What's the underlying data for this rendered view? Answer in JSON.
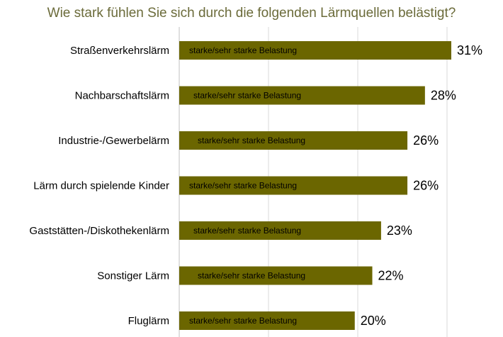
{
  "chart_data": {
    "type": "bar",
    "orientation": "horizontal",
    "title": "Wie stark fühlen Sie sich durch die folgenden Lärmquellen belästigt?",
    "categories": [
      "Straßenverkehrslärm",
      "Nachbarschaftslärm",
      "Industrie-/Gewerbelärm",
      "Lärm durch spielende Kinder",
      "Gaststätten-/Diskothekenlärm",
      "Sonstiger Lärm",
      "Fluglärm"
    ],
    "series": [
      {
        "name": "starke/sehr starke Belastung",
        "values": [
          31,
          28,
          26,
          26,
          23,
          22,
          20
        ],
        "value_labels": [
          "31%",
          "28%",
          "26%",
          "26%",
          "23%",
          "22%",
          "20%"
        ]
      }
    ],
    "bar_text": "starke/sehr starke Belastung",
    "xlim": [
      0,
      31
    ],
    "grid": true,
    "xlabel": "",
    "ylabel": "",
    "colors": {
      "bar": "#6b6600",
      "title": "#6b6b3a",
      "gridline": "#d9d9d9",
      "axis": "#bfbfbf"
    }
  }
}
